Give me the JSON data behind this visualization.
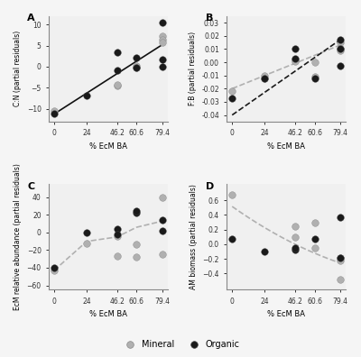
{
  "xticks": [
    0,
    24,
    46.2,
    60.6,
    79.4
  ],
  "xlabel": "% EcM BA",
  "mineral_color": "#b0b0b0",
  "organic_color": "#1a1a1a",
  "bg_color": "#f0f0f0",
  "fig_bg": "#f5f5f5",
  "A": {
    "ylabel": "C:N (partial residuals)",
    "ylim": [
      -13,
      12
    ],
    "yticks": [
      -10,
      -5,
      0,
      5,
      10
    ],
    "mineral_x": [
      0,
      46.2,
      46.2,
      60.6,
      60.6,
      79.4,
      79.4,
      79.4
    ],
    "mineral_y": [
      -10.5,
      -4.5,
      -4.2,
      0.2,
      -0.3,
      7.2,
      6.5,
      5.8
    ],
    "organic_x": [
      0,
      24,
      46.2,
      46.2,
      60.6,
      60.6,
      79.4,
      79.4,
      79.4
    ],
    "organic_y": [
      -11.2,
      -6.8,
      3.5,
      -0.8,
      -0.3,
      2.2,
      1.6,
      0.0,
      10.5
    ],
    "line_x": [
      0,
      79.4
    ],
    "line_y": [
      -11.2,
      5.2
    ],
    "line_color": "#111111"
  },
  "B": {
    "ylabel": "F:B (partial residuals)",
    "ylim": [
      -0.045,
      0.035
    ],
    "yticks": [
      -0.04,
      -0.03,
      -0.02,
      -0.01,
      0.0,
      0.01,
      0.02,
      0.03
    ],
    "mineral_x": [
      0,
      24,
      24,
      46.2,
      46.2,
      60.6,
      60.6,
      79.4,
      79.4,
      79.4
    ],
    "mineral_y": [
      -0.022,
      -0.01,
      -0.012,
      0.002,
      0.001,
      -0.011,
      0.0,
      0.01,
      0.009,
      0.015
    ],
    "organic_x": [
      0,
      24,
      46.2,
      46.2,
      60.6,
      79.4,
      79.4,
      79.4
    ],
    "organic_y": [
      -0.027,
      -0.012,
      0.01,
      0.003,
      -0.012,
      0.017,
      0.01,
      -0.003
    ],
    "mineral_line_x": [
      0,
      79.4
    ],
    "mineral_line_y": [
      -0.02,
      0.013
    ],
    "organic_line_x": [
      0,
      79.4
    ],
    "organic_line_y": [
      -0.04,
      0.017
    ],
    "mineral_line_color": "#b0b0b0",
    "organic_line_color": "#1a1a1a"
  },
  "C": {
    "ylabel": "EcM relative abundance (partial residuals)",
    "ylim": [
      -65,
      55
    ],
    "yticks": [
      -60,
      -40,
      -20,
      0,
      20,
      40
    ],
    "mineral_x": [
      0,
      24,
      46.2,
      46.2,
      60.6,
      60.6,
      79.4,
      79.4
    ],
    "mineral_y": [
      -43,
      -12,
      -27,
      -4,
      -13,
      -28,
      40,
      -25
    ],
    "organic_x": [
      0,
      24,
      46.2,
      46.2,
      60.6,
      60.6,
      79.4,
      79.4
    ],
    "organic_y": [
      -40,
      0,
      4,
      -2,
      22,
      25,
      14,
      2
    ],
    "line_x": [
      0,
      24,
      46.2,
      60.6,
      79.4
    ],
    "line_y": [
      -43,
      -10,
      -5,
      6,
      13
    ],
    "line_color": "#b0b0b0"
  },
  "D": {
    "ylabel": "AM biomass (partial residuals)",
    "ylim": [
      -0.62,
      0.82
    ],
    "yticks": [
      -0.4,
      -0.2,
      0.0,
      0.2,
      0.4,
      0.6
    ],
    "mineral_x": [
      0,
      46.2,
      46.2,
      60.6,
      60.6,
      79.4,
      79.4,
      79.4
    ],
    "mineral_y": [
      0.68,
      0.1,
      0.24,
      0.3,
      -0.05,
      -0.18,
      -0.22,
      -0.48
    ],
    "organic_x": [
      0,
      24,
      46.2,
      46.2,
      60.6,
      79.4,
      79.4
    ],
    "organic_y": [
      0.07,
      -0.1,
      -0.07,
      -0.05,
      0.07,
      -0.18,
      0.37
    ],
    "curve_x": [
      0,
      10,
      20,
      30,
      40,
      50,
      60,
      70,
      79.4
    ],
    "curve_y": [
      0.5,
      0.4,
      0.28,
      0.17,
      0.06,
      -0.04,
      -0.13,
      -0.2,
      -0.24
    ],
    "line_color": "#b0b0b0"
  }
}
